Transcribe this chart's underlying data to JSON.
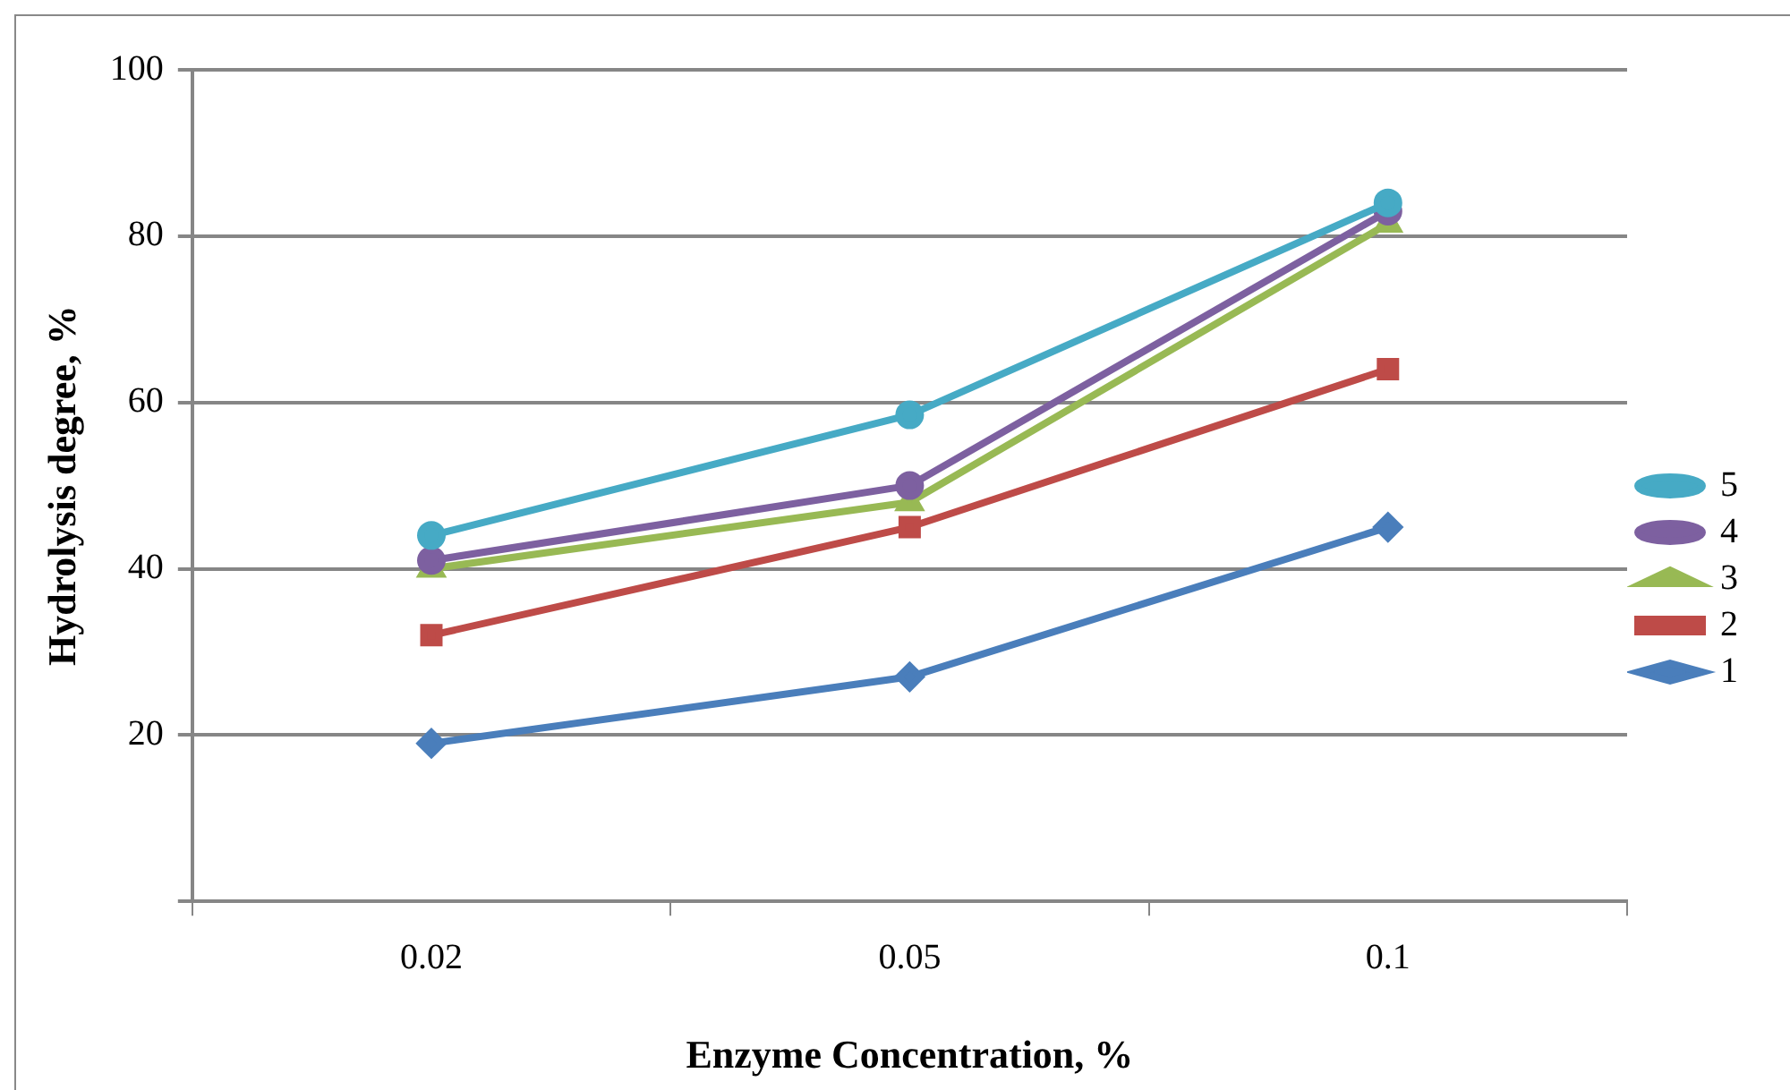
{
  "chart_data": {
    "type": "line",
    "xlabel": "Enzyme Concentration, %",
    "ylabel": "Hydrolysis degree, %",
    "categories": [
      "0.02",
      "0.05",
      "0.1"
    ],
    "series": [
      {
        "name": "1",
        "color": "#4a7ebb",
        "marker": "diamond",
        "values": [
          19,
          27,
          45
        ]
      },
      {
        "name": "2",
        "color": "#be4b48",
        "marker": "square",
        "values": [
          32,
          45,
          64
        ]
      },
      {
        "name": "3",
        "color": "#98b954",
        "marker": "triangle",
        "values": [
          40,
          48,
          81.5
        ]
      },
      {
        "name": "4",
        "color": "#7d60a0",
        "marker": "circle",
        "values": [
          41,
          50,
          83
        ]
      },
      {
        "name": "5",
        "color": "#46aac5",
        "marker": "circle",
        "values": [
          44,
          58.5,
          84
        ]
      }
    ],
    "ylim": [
      0,
      100
    ],
    "yticks": [
      {
        "value": 0,
        "label": null
      },
      20,
      40,
      60,
      80,
      100
    ],
    "grid": "y",
    "legend": "right",
    "line_style": "solid"
  }
}
